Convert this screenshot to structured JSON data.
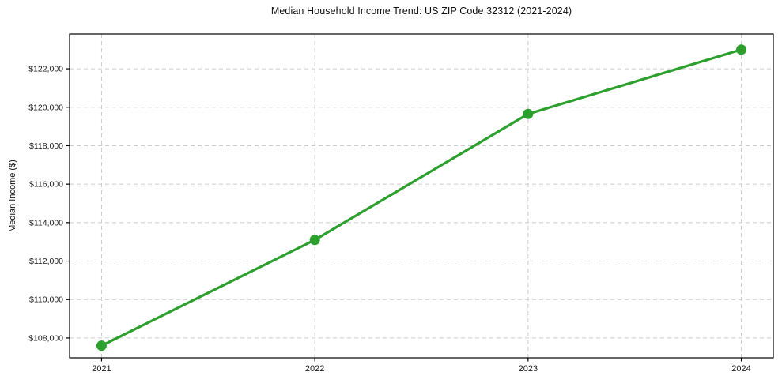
{
  "chart_data": {
    "type": "line",
    "title": "Median Household Income Trend: US ZIP Code 32312 (2021-2024)",
    "xlabel": "",
    "ylabel": "Median Income ($)",
    "series": [
      {
        "name": "Median Household Income",
        "x": [
          2021,
          2022,
          2023,
          2024
        ],
        "values": [
          107600,
          113100,
          119650,
          123000
        ]
      }
    ],
    "x_tick_labels": [
      "2021",
      "2022",
      "2023",
      "2024"
    ],
    "yticks": [
      108000,
      110000,
      112000,
      114000,
      116000,
      118000,
      120000,
      122000
    ],
    "y_tick_labels": [
      "$108,000",
      "$110,000",
      "$112,000",
      "$114,000",
      "$116,000",
      "$118,000",
      "$120,000",
      "$122,000"
    ],
    "xlim": [
      2020.85,
      2024.15
    ],
    "ylim": [
      106970,
      123810
    ],
    "grid": true,
    "grid_style": "dashed",
    "legend": null,
    "colors": {
      "line": "#2ca02c",
      "marker": "#2ca02c",
      "grid": "#cccccc",
      "spine": "#000000",
      "background": "#ffffff",
      "text": "#1a1a1a"
    }
  }
}
